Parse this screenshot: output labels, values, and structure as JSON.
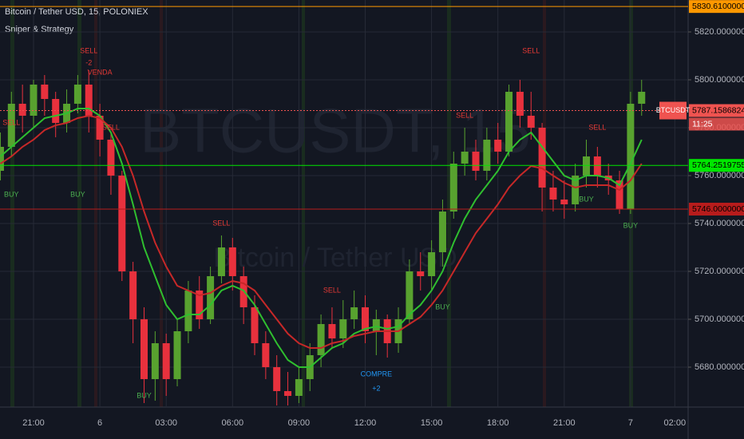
{
  "chart_data": {
    "type": "candlestick",
    "title": "Bitcoin / Tether USD, 15, POLONIEX",
    "subtitle": "Sniper & Strategy",
    "watermark": "BTCUSDT, 15",
    "watermark_sub": "Bitcoin / Tether USD",
    "categories": [
      null,
      null,
      null,
      "21:00",
      null,
      null,
      null,
      null,
      null,
      "6",
      null,
      null,
      null,
      null,
      null,
      "03:00",
      null,
      null,
      null,
      null,
      null,
      "06:00",
      null,
      null,
      null,
      null,
      null,
      "09:00",
      null,
      null,
      null,
      null,
      null,
      "12:00",
      null,
      null,
      null,
      null,
      null,
      "15:00",
      null,
      null,
      null,
      null,
      null,
      "18:00",
      null,
      null,
      null,
      null,
      null,
      "21:00",
      null,
      null,
      null,
      null,
      null,
      "7",
      null,
      null,
      null,
      "02:00",
      null
    ],
    "open": [
      5762,
      5772,
      5790,
      5785,
      5798,
      5792,
      5782,
      5790,
      5798,
      5785,
      5775,
      5760,
      5720,
      5700,
      5675,
      5690,
      5675,
      5695,
      5712,
      5700,
      5718,
      5730,
      5718,
      5705,
      5690,
      5680,
      5670,
      5668,
      5675,
      5685,
      5698,
      5692,
      5700,
      5705,
      5695,
      5700,
      5690,
      5700,
      5720,
      5718,
      5728,
      5745,
      5765,
      5770,
      5762,
      5775,
      5770,
      5795,
      5785,
      5780,
      5755,
      5750,
      5748,
      5760,
      5768,
      5760,
      5758,
      5746,
      5790,
      null,
      null,
      null,
      null
    ],
    "high": [
      5778,
      5795,
      5798,
      5800,
      5802,
      5795,
      5796,
      5802,
      5804,
      5790,
      5778,
      5762,
      5724,
      5705,
      5695,
      5694,
      5700,
      5716,
      5718,
      5722,
      5735,
      5734,
      5722,
      5710,
      5695,
      5685,
      5678,
      5680,
      5690,
      5702,
      5705,
      5708,
      5712,
      5710,
      5704,
      5702,
      5705,
      5725,
      5728,
      5733,
      5750,
      5770,
      5780,
      5775,
      5780,
      5782,
      5798,
      5800,
      5795,
      5782,
      5762,
      5758,
      5765,
      5775,
      5772,
      5765,
      5762,
      5795,
      5800,
      null,
      null,
      null,
      null
    ],
    "low": [
      5758,
      5768,
      5778,
      5780,
      5785,
      5776,
      5778,
      5786,
      5778,
      5768,
      5752,
      5716,
      5690,
      5665,
      5666,
      5668,
      5672,
      5690,
      5696,
      5698,
      5715,
      5712,
      5698,
      5685,
      5675,
      5664,
      5664,
      5665,
      5670,
      5680,
      5688,
      5688,
      5696,
      5690,
      5685,
      5684,
      5686,
      5698,
      5712,
      5712,
      5722,
      5742,
      5760,
      5758,
      5758,
      5765,
      5768,
      5780,
      5775,
      5745,
      5745,
      5742,
      5745,
      5755,
      5755,
      5752,
      5744,
      5744,
      5785,
      null,
      null,
      null,
      null
    ],
    "close": [
      5772,
      5790,
      5785,
      5798,
      5792,
      5782,
      5790,
      5798,
      5785,
      5775,
      5760,
      5720,
      5700,
      5675,
      5690,
      5675,
      5695,
      5712,
      5700,
      5718,
      5730,
      5718,
      5705,
      5690,
      5680,
      5670,
      5668,
      5675,
      5685,
      5698,
      5692,
      5700,
      5705,
      5695,
      5700,
      5690,
      5700,
      5720,
      5718,
      5728,
      5745,
      5765,
      5770,
      5762,
      5775,
      5770,
      5795,
      5785,
      5780,
      5755,
      5750,
      5748,
      5760,
      5768,
      5760,
      5758,
      5746,
      5790,
      5795,
      null,
      null,
      null,
      null
    ],
    "up_color": "#58a22f",
    "down_color": "#e8313d",
    "lines": [
      {
        "color": "#2fbf2f",
        "values": [
          5768,
          5772,
          5776,
          5780,
          5784,
          5785,
          5786,
          5788,
          5788,
          5785,
          5778,
          5765,
          5748,
          5730,
          5718,
          5706,
          5700,
          5702,
          5702,
          5706,
          5712,
          5714,
          5712,
          5706,
          5698,
          5690,
          5683,
          5680,
          5680,
          5684,
          5688,
          5690,
          5694,
          5696,
          5697,
          5696,
          5697,
          5702,
          5706,
          5712,
          5720,
          5732,
          5742,
          5750,
          5756,
          5762,
          5770,
          5775,
          5778,
          5772,
          5766,
          5760,
          5758,
          5760,
          5760,
          5759,
          5756,
          5765,
          5775,
          null,
          null,
          null,
          null
        ]
      },
      {
        "color": "#c62828",
        "values": [
          5765,
          5768,
          5772,
          5775,
          5779,
          5781,
          5782,
          5784,
          5785,
          5784,
          5780,
          5772,
          5760,
          5745,
          5732,
          5722,
          5714,
          5712,
          5710,
          5711,
          5714,
          5716,
          5715,
          5712,
          5706,
          5700,
          5694,
          5690,
          5688,
          5688,
          5690,
          5691,
          5693,
          5694,
          5695,
          5695,
          5695,
          5698,
          5701,
          5706,
          5712,
          5720,
          5728,
          5736,
          5742,
          5748,
          5755,
          5760,
          5764,
          5763,
          5760,
          5757,
          5755,
          5756,
          5756,
          5756,
          5754,
          5758,
          5765,
          null,
          null,
          null,
          null
        ]
      }
    ],
    "ylim": [
      5663.33,
      5833.33
    ],
    "yticks": [
      {
        "value": 5680,
        "label": "5680.00000000"
      },
      {
        "value": 5700,
        "label": "5700.00000000"
      },
      {
        "value": 5720,
        "label": "5720.00000000"
      },
      {
        "value": 5740,
        "label": "5740.00000000"
      },
      {
        "value": 5760,
        "label": "5760.00000000"
      },
      {
        "value": 5780,
        "label": "5780.00000000"
      },
      {
        "value": 5800,
        "label": "5800.00000000"
      },
      {
        "value": 5820,
        "label": "5820.00000000"
      }
    ],
    "grid": true,
    "price_lines": [
      {
        "value": 5830.61,
        "label": "5830.61000000",
        "color": "#ff9800"
      },
      {
        "value": 5787.15868242,
        "label": "5787.15868242",
        "color": "#ef5350",
        "tag": "BTCUSDT",
        "time": "11:25"
      },
      {
        "value": 5764.25197551,
        "label": "5764.25197551",
        "color": "#00e600"
      },
      {
        "value": 5746,
        "label": "5746.00000000",
        "color": "#b71c1c"
      }
    ],
    "annotations": [
      {
        "text": "SELL",
        "at": 1,
        "price": 5782,
        "color": "#e53935"
      },
      {
        "text": "BUY",
        "at": 1,
        "price": 5752,
        "color": "#4caf50"
      },
      {
        "text": "SELL",
        "at": 8,
        "price": 5812,
        "color": "#e53935"
      },
      {
        "text": "-2",
        "at": 8,
        "price": 5807,
        "color": "#e53935"
      },
      {
        "text": "VENDA",
        "at": 9,
        "price": 5803,
        "color": "#e53935"
      },
      {
        "text": "BUY",
        "at": 7,
        "price": 5752,
        "color": "#4caf50"
      },
      {
        "text": "SELL",
        "at": 10,
        "price": 5780,
        "color": "#e53935"
      },
      {
        "text": "SELL",
        "at": 20,
        "price": 5740,
        "color": "#e53935"
      },
      {
        "text": "BUY",
        "at": 13,
        "price": 5668,
        "color": "#4caf50"
      },
      {
        "text": "SELL",
        "at": 30,
        "price": 5712,
        "color": "#e53935"
      },
      {
        "text": "COMPRE",
        "at": 34,
        "price": 5677,
        "color": "#2196f3"
      },
      {
        "text": "+2",
        "at": 34,
        "price": 5671,
        "color": "#2196f3"
      },
      {
        "text": "BUY",
        "at": 40,
        "price": 5705,
        "color": "#4caf50"
      },
      {
        "text": "SELL",
        "at": 42,
        "price": 5785,
        "color": "#e53935"
      },
      {
        "text": "SELL",
        "at": 48,
        "price": 5812,
        "color": "#e53935"
      },
      {
        "text": "BUY",
        "at": 53,
        "price": 5750,
        "color": "#4caf50"
      },
      {
        "text": "SELL",
        "at": 54,
        "price": 5780,
        "color": "#e53935"
      },
      {
        "text": "BUY",
        "at": 57,
        "price": 5739,
        "color": "#4caf50"
      }
    ]
  }
}
